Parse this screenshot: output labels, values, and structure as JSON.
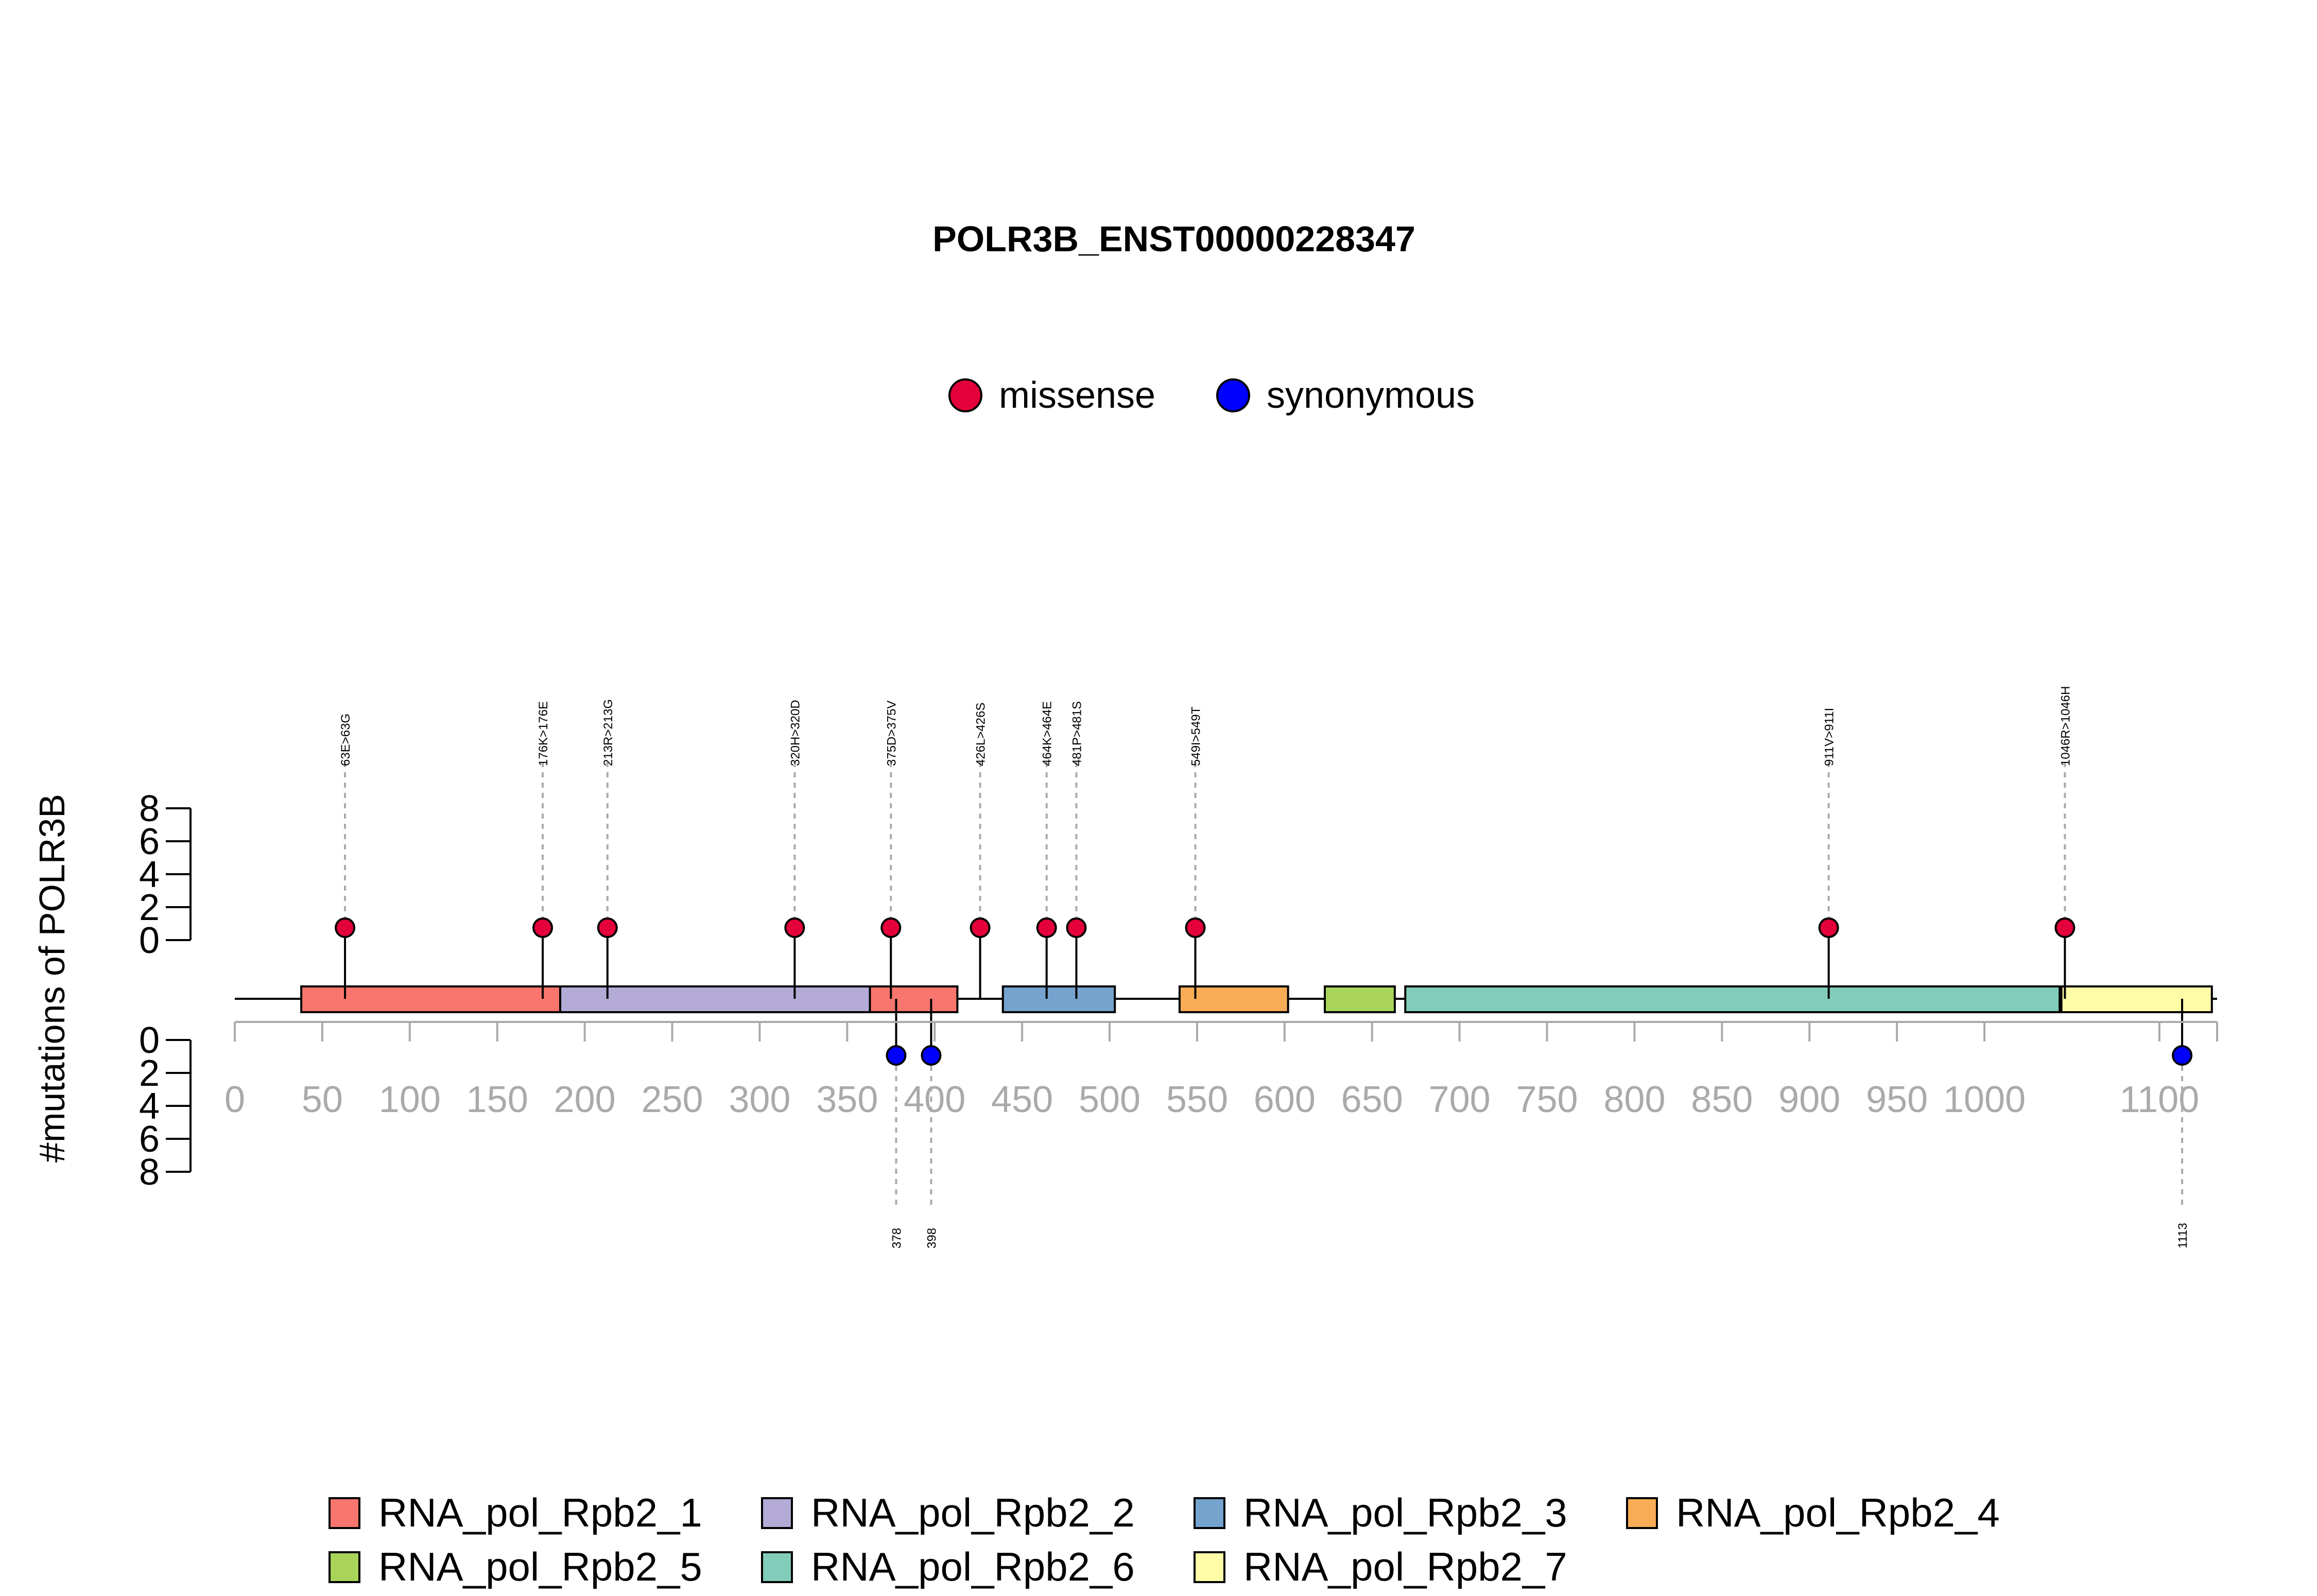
{
  "chart_data": {
    "type": "lollipop",
    "title": "POLR3B_ENST00000228347",
    "ylabel": "#mutations of POLR3B",
    "xlim": [
      0,
      1133
    ],
    "x_ticks": [
      0,
      50,
      100,
      150,
      200,
      250,
      300,
      350,
      400,
      450,
      500,
      550,
      600,
      650,
      700,
      750,
      800,
      850,
      900,
      950,
      1000,
      1100
    ],
    "y_ticks": [
      0,
      2,
      4,
      6,
      8
    ],
    "legend_mutations": [
      {
        "name": "missense",
        "color": "#E4003A"
      },
      {
        "name": "synonymous",
        "color": "#0000FF"
      }
    ],
    "domains": [
      {
        "name": "RNA_pol_Rpb2_1",
        "start": 38,
        "end": 186,
        "color": "#F8766D"
      },
      {
        "name": "RNA_pol_Rpb2_1",
        "start": 363,
        "end": 413,
        "color": "#F8766D"
      },
      {
        "name": "RNA_pol_Rpb2_2",
        "start": 186,
        "end": 363,
        "color": "#B3AAD6"
      },
      {
        "name": "RNA_pol_Rpb2_3",
        "start": 439,
        "end": 503,
        "color": "#74A4CE"
      },
      {
        "name": "RNA_pol_Rpb2_4",
        "start": 540,
        "end": 602,
        "color": "#F8AC55"
      },
      {
        "name": "RNA_pol_Rpb2_5",
        "start": 623,
        "end": 663,
        "color": "#A8D45A"
      },
      {
        "name": "RNA_pol_Rpb2_6",
        "start": 669,
        "end": 1043,
        "color": "#82CDBA"
      },
      {
        "name": "RNA_pol_Rpb2_7",
        "start": 1044,
        "end": 1130,
        "color": "#FFFCA8"
      }
    ],
    "domain_legend": [
      {
        "name": "RNA_pol_Rpb2_1",
        "color": "#F8766D"
      },
      {
        "name": "RNA_pol_Rpb2_2",
        "color": "#B3AAD6"
      },
      {
        "name": "RNA_pol_Rpb2_3",
        "color": "#74A4CE"
      },
      {
        "name": "RNA_pol_Rpb2_4",
        "color": "#F8AC55"
      },
      {
        "name": "RNA_pol_Rpb2_5",
        "color": "#A8D45A"
      },
      {
        "name": "RNA_pol_Rpb2_6",
        "color": "#82CDBA"
      },
      {
        "name": "RNA_pol_Rpb2_7",
        "color": "#FFFCA8"
      }
    ],
    "missense": [
      {
        "pos": 63,
        "label": "63E>63G",
        "count": 1
      },
      {
        "pos": 176,
        "label": "176K>176E",
        "count": 1
      },
      {
        "pos": 213,
        "label": "213R>213G",
        "count": 1
      },
      {
        "pos": 320,
        "label": "320H>320D",
        "count": 1
      },
      {
        "pos": 375,
        "label": "375D>375V",
        "count": 1
      },
      {
        "pos": 426,
        "label": "426L>426S",
        "count": 1
      },
      {
        "pos": 464,
        "label": "464K>464E",
        "count": 1
      },
      {
        "pos": 481,
        "label": "481P>481S",
        "count": 1
      },
      {
        "pos": 549,
        "label": "549I>549T",
        "count": 1
      },
      {
        "pos": 911,
        "label": "911V>911I",
        "count": 1
      },
      {
        "pos": 1046,
        "label": "1046R>1046H",
        "count": 1
      }
    ],
    "synonymous": [
      {
        "pos": 378,
        "label": "378",
        "count": 1
      },
      {
        "pos": 398,
        "label": "398",
        "count": 1
      },
      {
        "pos": 1113,
        "label": "1113",
        "count": 1
      }
    ]
  }
}
